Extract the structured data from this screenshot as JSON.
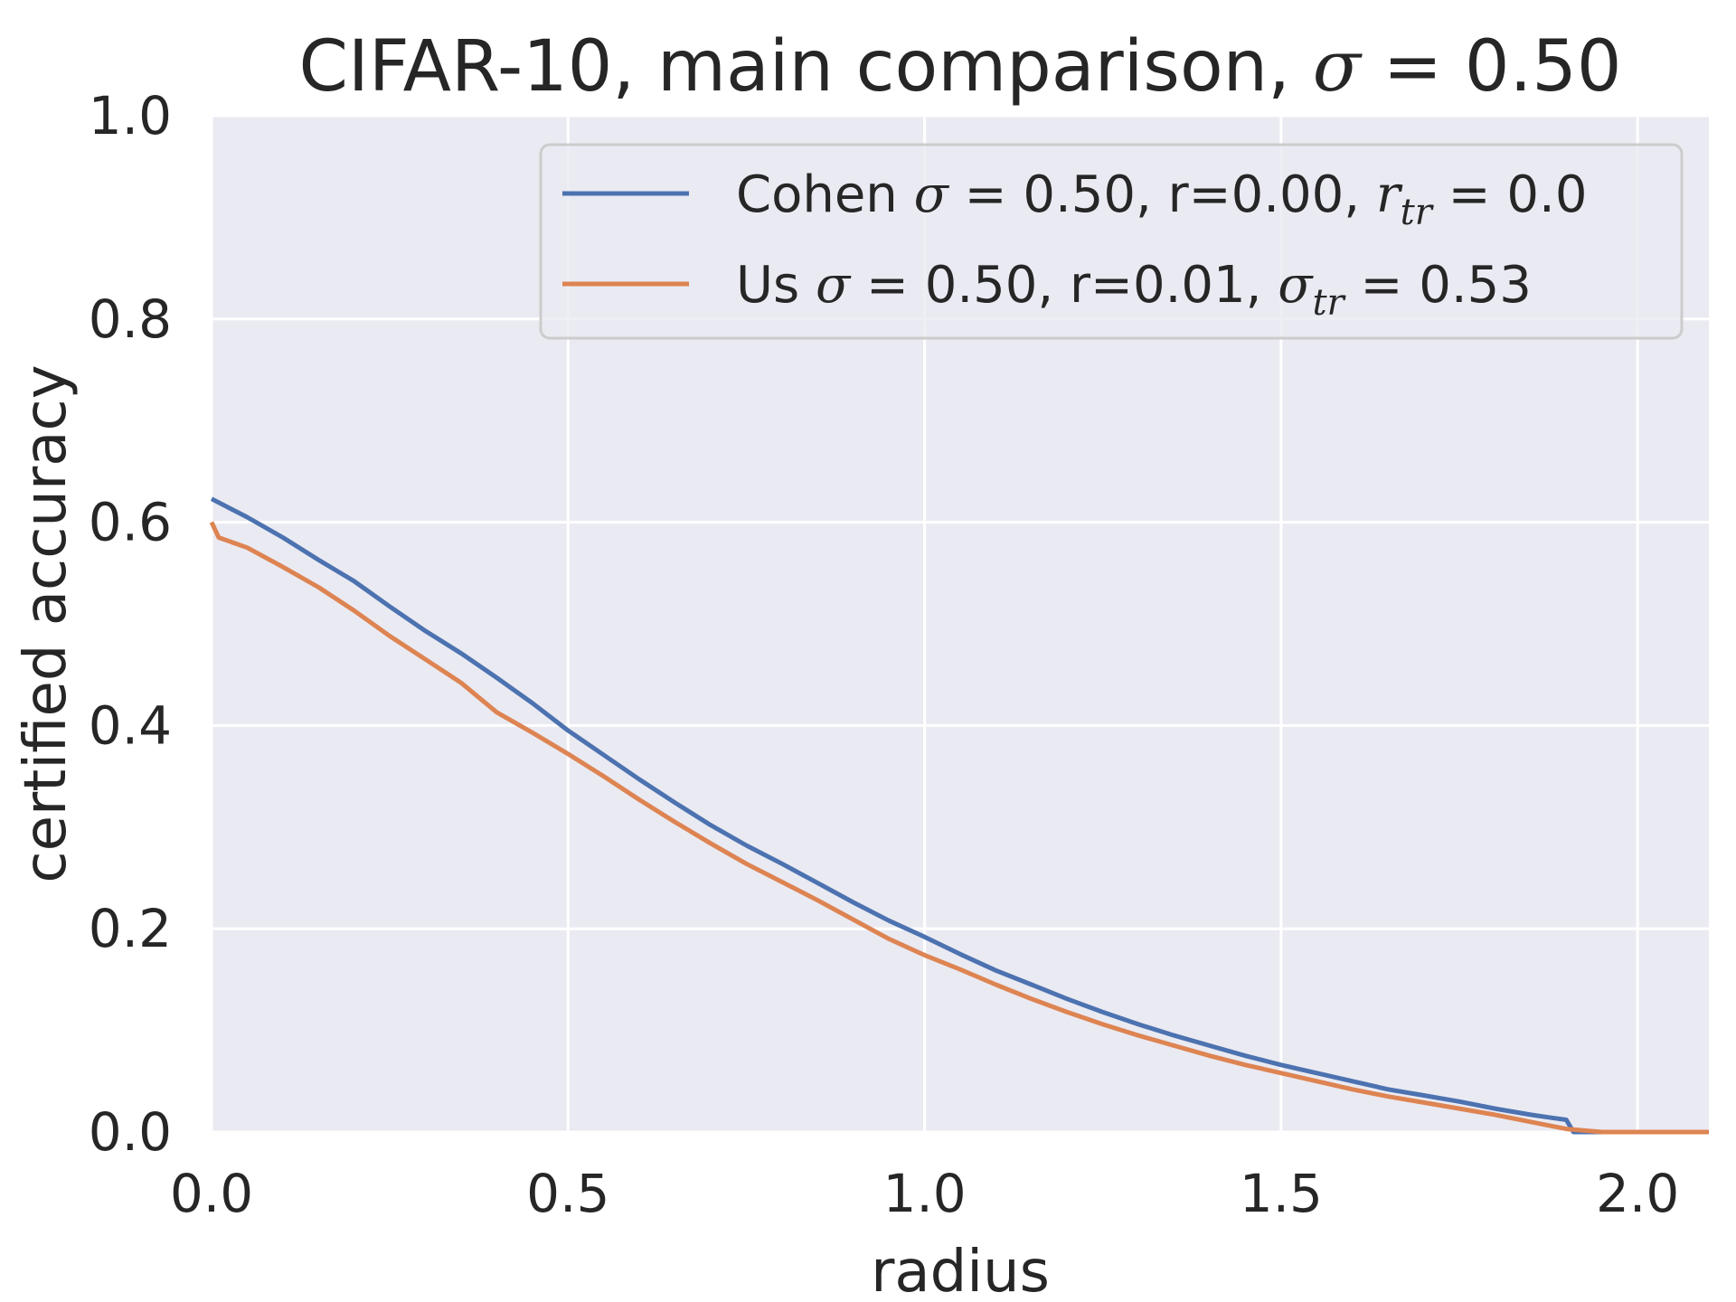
{
  "chart_data": {
    "type": "line",
    "title_prefix": "CIFAR-10, main comparison, ",
    "title_symbol": "σ",
    "title_suffix": " = 0.50",
    "xlabel": "radius",
    "ylabel": "certified accuracy",
    "xlim": [
      0,
      2.1
    ],
    "ylim": [
      0,
      1.0
    ],
    "xticks": [
      "0.0",
      "0.5",
      "1.0",
      "1.5",
      "2.0"
    ],
    "yticks": [
      "0.0",
      "0.2",
      "0.4",
      "0.6",
      "0.8",
      "1.0"
    ],
    "grid": true,
    "legend_position": "top-right",
    "background": "#eaeaf2",
    "series": [
      {
        "color": "#4c72b0",
        "legend": {
          "pre": "Cohen ",
          "sym1": "σ",
          "mid": " = 0.50, r=0.00, ",
          "sym2": "r",
          "sub": "tr",
          "post": " = 0.0"
        },
        "x": [
          0.0,
          0.05,
          0.1,
          0.15,
          0.2,
          0.25,
          0.3,
          0.35,
          0.4,
          0.45,
          0.5,
          0.55,
          0.6,
          0.65,
          0.7,
          0.75,
          0.8,
          0.85,
          0.9,
          0.95,
          1.0,
          1.05,
          1.1,
          1.15,
          1.2,
          1.25,
          1.3,
          1.35,
          1.4,
          1.45,
          1.5,
          1.55,
          1.6,
          1.65,
          1.7,
          1.75,
          1.8,
          1.85,
          1.88,
          1.9,
          1.91,
          1.95,
          2.0,
          2.1
        ],
        "y": [
          0.623,
          0.605,
          0.585,
          0.563,
          0.542,
          0.517,
          0.493,
          0.471,
          0.447,
          0.422,
          0.395,
          0.371,
          0.347,
          0.324,
          0.302,
          0.282,
          0.264,
          0.245,
          0.226,
          0.208,
          0.192,
          0.175,
          0.159,
          0.145,
          0.131,
          0.118,
          0.106,
          0.095,
          0.085,
          0.075,
          0.066,
          0.058,
          0.05,
          0.042,
          0.036,
          0.03,
          0.023,
          0.017,
          0.014,
          0.012,
          0.0,
          0.0,
          0.0,
          0.0
        ]
      },
      {
        "color": "#dd8452",
        "legend": {
          "pre": "Us ",
          "sym1": "σ",
          "mid": " = 0.50, r=0.01, ",
          "sym2": "σ",
          "sub": "tr",
          "post": " = 0.53"
        },
        "x": [
          0.0,
          0.01,
          0.05,
          0.1,
          0.15,
          0.2,
          0.25,
          0.3,
          0.35,
          0.4,
          0.45,
          0.5,
          0.55,
          0.6,
          0.65,
          0.7,
          0.75,
          0.8,
          0.85,
          0.9,
          0.95,
          1.0,
          1.05,
          1.1,
          1.15,
          1.2,
          1.25,
          1.3,
          1.35,
          1.4,
          1.45,
          1.5,
          1.55,
          1.6,
          1.65,
          1.7,
          1.75,
          1.8,
          1.85,
          1.9,
          1.95,
          2.0,
          2.1
        ],
        "y": [
          0.6,
          0.585,
          0.575,
          0.556,
          0.536,
          0.513,
          0.488,
          0.465,
          0.442,
          0.413,
          0.393,
          0.372,
          0.35,
          0.327,
          0.305,
          0.284,
          0.264,
          0.246,
          0.228,
          0.209,
          0.19,
          0.174,
          0.16,
          0.145,
          0.131,
          0.118,
          0.106,
          0.095,
          0.085,
          0.075,
          0.066,
          0.058,
          0.05,
          0.042,
          0.035,
          0.029,
          0.023,
          0.017,
          0.01,
          0.003,
          0.0,
          0.0,
          0.0
        ]
      }
    ]
  }
}
